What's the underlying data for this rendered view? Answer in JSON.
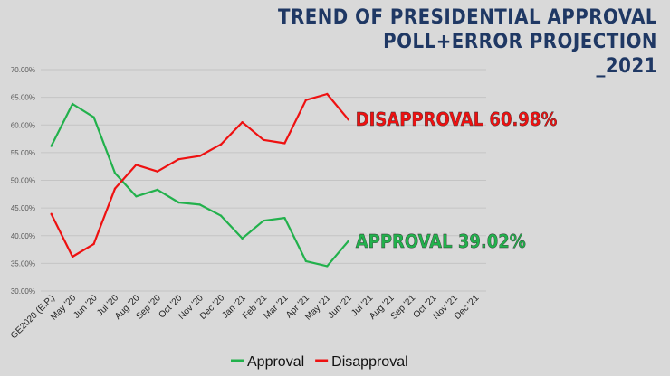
{
  "title_lines": [
    "TREND OF PRESIDENTIAL APPROVAL",
    "POLL+ERROR PROJECTION",
    "_2021"
  ],
  "chart_data": {
    "type": "line",
    "categories": [
      "GE2020 (E.P.)",
      "May '20",
      "Jun '20",
      "Jul '20",
      "Aug '20",
      "Sep '20",
      "Oct '20",
      "Nov '20",
      "Dec '20",
      "Jan '21",
      "Feb '21",
      "Mar '21",
      "Apr '21",
      "May '21",
      "Jun '21",
      "Jul '21",
      "Aug '21",
      "Sep '21",
      "Oct '21",
      "Nov '21",
      "Dec '21"
    ],
    "series": [
      {
        "name": "Approval",
        "color": "#22b14c",
        "values": [
          56.2,
          63.8,
          61.4,
          51.3,
          47.1,
          48.3,
          46.0,
          45.6,
          43.6,
          39.5,
          42.7,
          43.2,
          35.4,
          34.5,
          39.02,
          null,
          null,
          null,
          null,
          null,
          null
        ]
      },
      {
        "name": "Disapproval",
        "color": "#ee1111",
        "values": [
          43.9,
          36.2,
          38.5,
          48.5,
          52.8,
          51.6,
          53.8,
          54.4,
          56.5,
          60.5,
          57.3,
          56.7,
          64.5,
          65.6,
          60.98,
          null,
          null,
          null,
          null,
          null,
          null
        ]
      }
    ],
    "y_ticks": [
      "30.00%",
      "35.00%",
      "40.00%",
      "45.00%",
      "50.00%",
      "55.00%",
      "60.00%",
      "65.00%",
      "70.00%"
    ],
    "ylim": [
      30,
      70
    ],
    "grid": true,
    "legend_position": "bottom",
    "annotations": [
      {
        "text": "DISAPPROVAL 60.98%",
        "series": "Disapproval",
        "color": "#ee1111"
      },
      {
        "text": "APPROVAL 39.02%",
        "series": "Approval",
        "color": "#22b14c"
      }
    ]
  }
}
